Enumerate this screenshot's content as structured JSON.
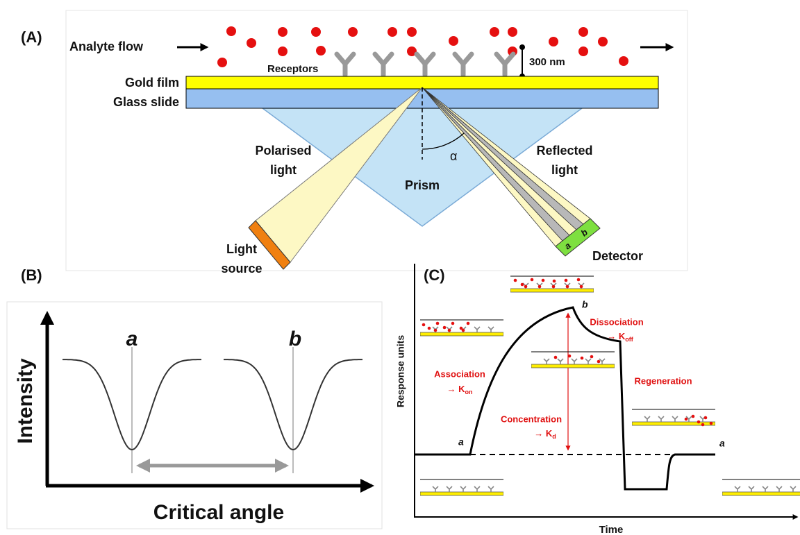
{
  "panel_a": {
    "label": "(A)",
    "analyte_flow": "Analyte flow",
    "receptors": "Receptors",
    "distance": "300 nm",
    "gold_film": "Gold film",
    "glass_slide": "Glass slide",
    "polarised_light": [
      "Polarised",
      "light"
    ],
    "prism": "Prism",
    "angle": "α",
    "reflected_light": [
      "Reflected",
      "light"
    ],
    "light_source": [
      "Light",
      "source"
    ],
    "detector": "Detector",
    "detector_a": "a",
    "detector_b": "b"
  },
  "panel_b": {
    "label": "(B)",
    "y_axis": "Intensity",
    "x_axis": "Critical angle",
    "dip_a": "a",
    "dip_b": "b"
  },
  "panel_c": {
    "label": "(C)",
    "y_axis": "Response units",
    "x_axis": "Time",
    "association": {
      "text": "Association",
      "rate": "→ K",
      "subscript": "on"
    },
    "dissociation": {
      "text": "Dissociation",
      "rate": "→ K",
      "subscript": "off"
    },
    "concentration": {
      "text": "Concentration",
      "rate": "→ K",
      "subscript": "d"
    },
    "regeneration": "Regeneration",
    "point_start": "a",
    "point_peak": "b",
    "point_end": "a"
  }
}
